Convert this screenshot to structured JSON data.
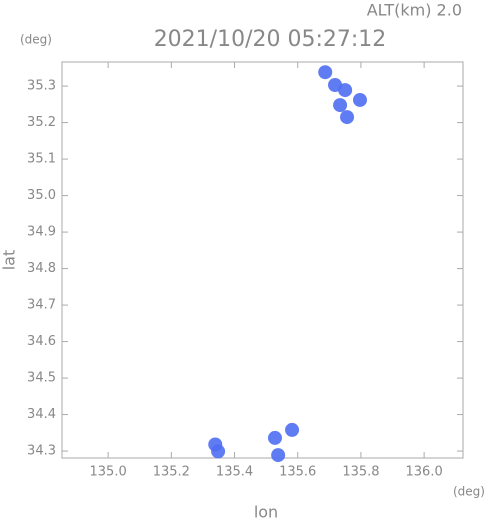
{
  "chart_data": {
    "type": "scatter",
    "title": "2021/10/20 05:27:12",
    "subtitle": "ALT(km) 2.0",
    "y_unit": "(deg)",
    "x_unit": "(deg)",
    "x_label": "lon",
    "y_label": "lat",
    "xlim": [
      134.854,
      136.123
    ],
    "ylim": [
      34.281,
      35.366
    ],
    "xticks": [
      {
        "value": 135,
        "label": "135.0"
      },
      135.2,
      135.4,
      135.6,
      135.8,
      {
        "value": 136,
        "label": "136.0"
      }
    ],
    "yticks": [
      34.3,
      34.4,
      34.5,
      34.6,
      34.7,
      34.8,
      34.9,
      {
        "value": 35,
        "label": "35.0"
      },
      35.1,
      35.2,
      35.3
    ],
    "series": [
      {
        "color": "#4f6ef2",
        "x": [
          135.687,
          135.718,
          135.75,
          135.797,
          135.734,
          135.756,
          135.339,
          135.348,
          135.528,
          135.582,
          135.538
        ],
        "y": [
          35.338,
          35.303,
          35.289,
          35.262,
          35.248,
          35.215,
          34.318,
          34.299,
          34.336,
          34.358,
          34.289
        ]
      }
    ]
  }
}
